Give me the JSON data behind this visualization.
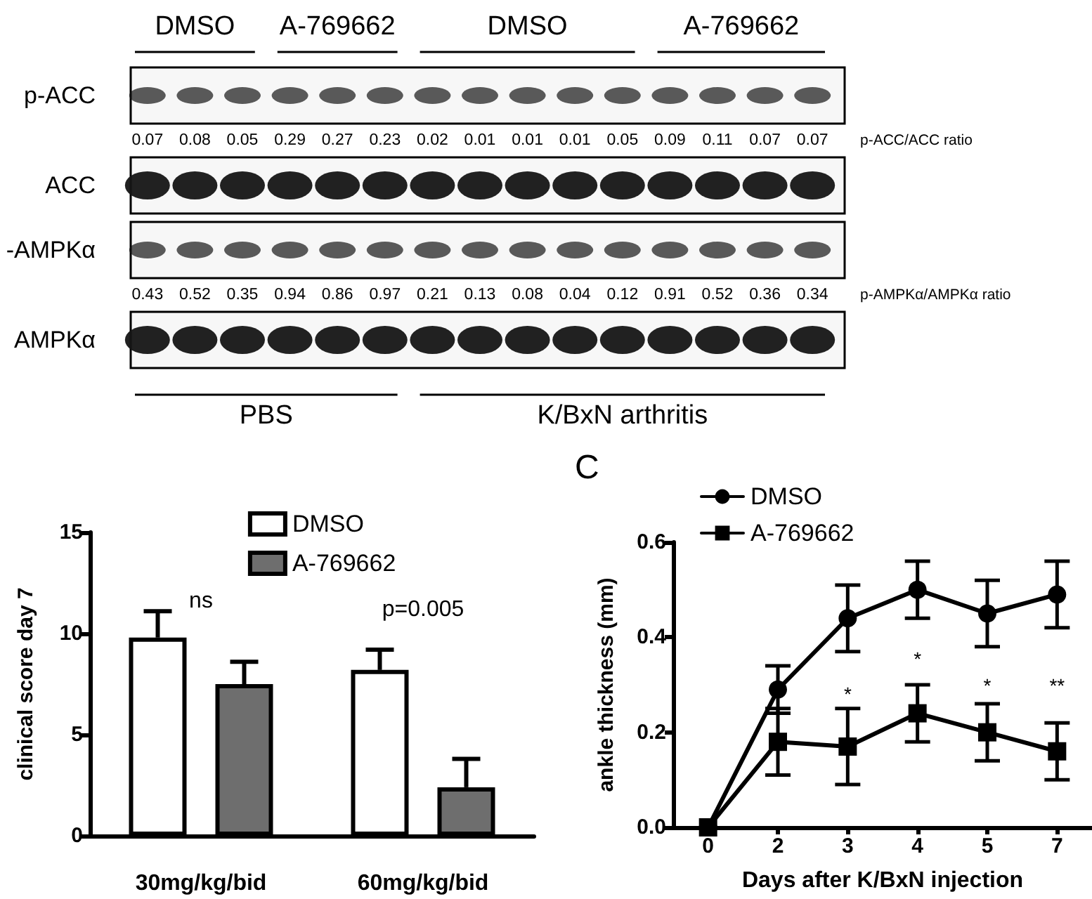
{
  "chart_data": [
    {
      "type": "other",
      "y_categories": [
        "p-ACC",
        "ACC",
        "-AMPKα",
        "AMPKα"
      ],
      "annotations": [
        "DMSO",
        "A-769662",
        "DMSO",
        "A-769662",
        "0.07",
        "0.08",
        "0.05",
        "0.29",
        "0.27",
        "0.23",
        "0.02",
        "0.01",
        "0.01",
        "0.01",
        "0.05",
        "0.09",
        "0.11",
        "0.07",
        "0.07",
        "p-ACC/ACC ratio",
        "0.43",
        "0.52",
        "0.35",
        "0.94",
        "0.86",
        "0.97",
        "0.21",
        "0.13",
        "0.08",
        "0.04",
        "0.12",
        "0.91",
        "0.52",
        "0.36",
        "0.34",
        "p-AMPKα/AMPKα ratio",
        "PBS",
        "K/BxN arthritis"
      ]
    },
    {
      "type": "bar",
      "categories": [
        "30mg/kg/bid",
        "60mg/kg/bid"
      ],
      "ylabel": "clinical score day 7",
      "series": [
        {
          "name": "DMSO",
          "color": "#ffffff",
          "values": [
            9.8,
            8.2
          ],
          "errors": [
            [
              9.8,
              11.1
            ],
            [
              8.2,
              9.2
            ]
          ]
        },
        {
          "name": "A-769662",
          "color": "#6e6e6e",
          "values": [
            7.5,
            2.4
          ],
          "errors": [
            [
              7.5,
              8.6
            ],
            [
              2.4,
              3.8
            ]
          ]
        }
      ],
      "ylim": [
        0,
        15
      ],
      "yticks": [
        0,
        5,
        10,
        15
      ],
      "legend": "top",
      "annotations": [
        "ns",
        "p=0.005"
      ]
    },
    {
      "type": "line",
      "title": "C",
      "categories": [
        "0",
        "2",
        "3",
        "4",
        "5",
        "7"
      ],
      "xlabel": "Days after K/BxN injection",
      "ylabel": "ankle thickness (mm)",
      "series": [
        {
          "name": "DMSO",
          "color": "#000000",
          "marker": "circle",
          "values": [
            0,
            0.29,
            0.44,
            0.5,
            0.45,
            0.49
          ],
          "errors": [
            null,
            0.05,
            0.07,
            0.06,
            0.07,
            0.07
          ]
        },
        {
          "name": "A-769662",
          "color": "#000000",
          "marker": "square",
          "values": [
            0,
            0.18,
            0.17,
            0.24,
            0.2,
            0.16
          ],
          "errors": [
            null,
            0.07,
            0.08,
            0.06,
            0.06,
            0.06
          ]
        }
      ],
      "ylim": [
        0,
        0.6
      ],
      "yticks": [
        {
          "value": 0,
          "label": "0.0"
        },
        0.2,
        0.4,
        0.6
      ],
      "legend": "top left",
      "line_style": "solid",
      "annotations": [
        "*",
        "*",
        "*",
        "**"
      ]
    }
  ]
}
